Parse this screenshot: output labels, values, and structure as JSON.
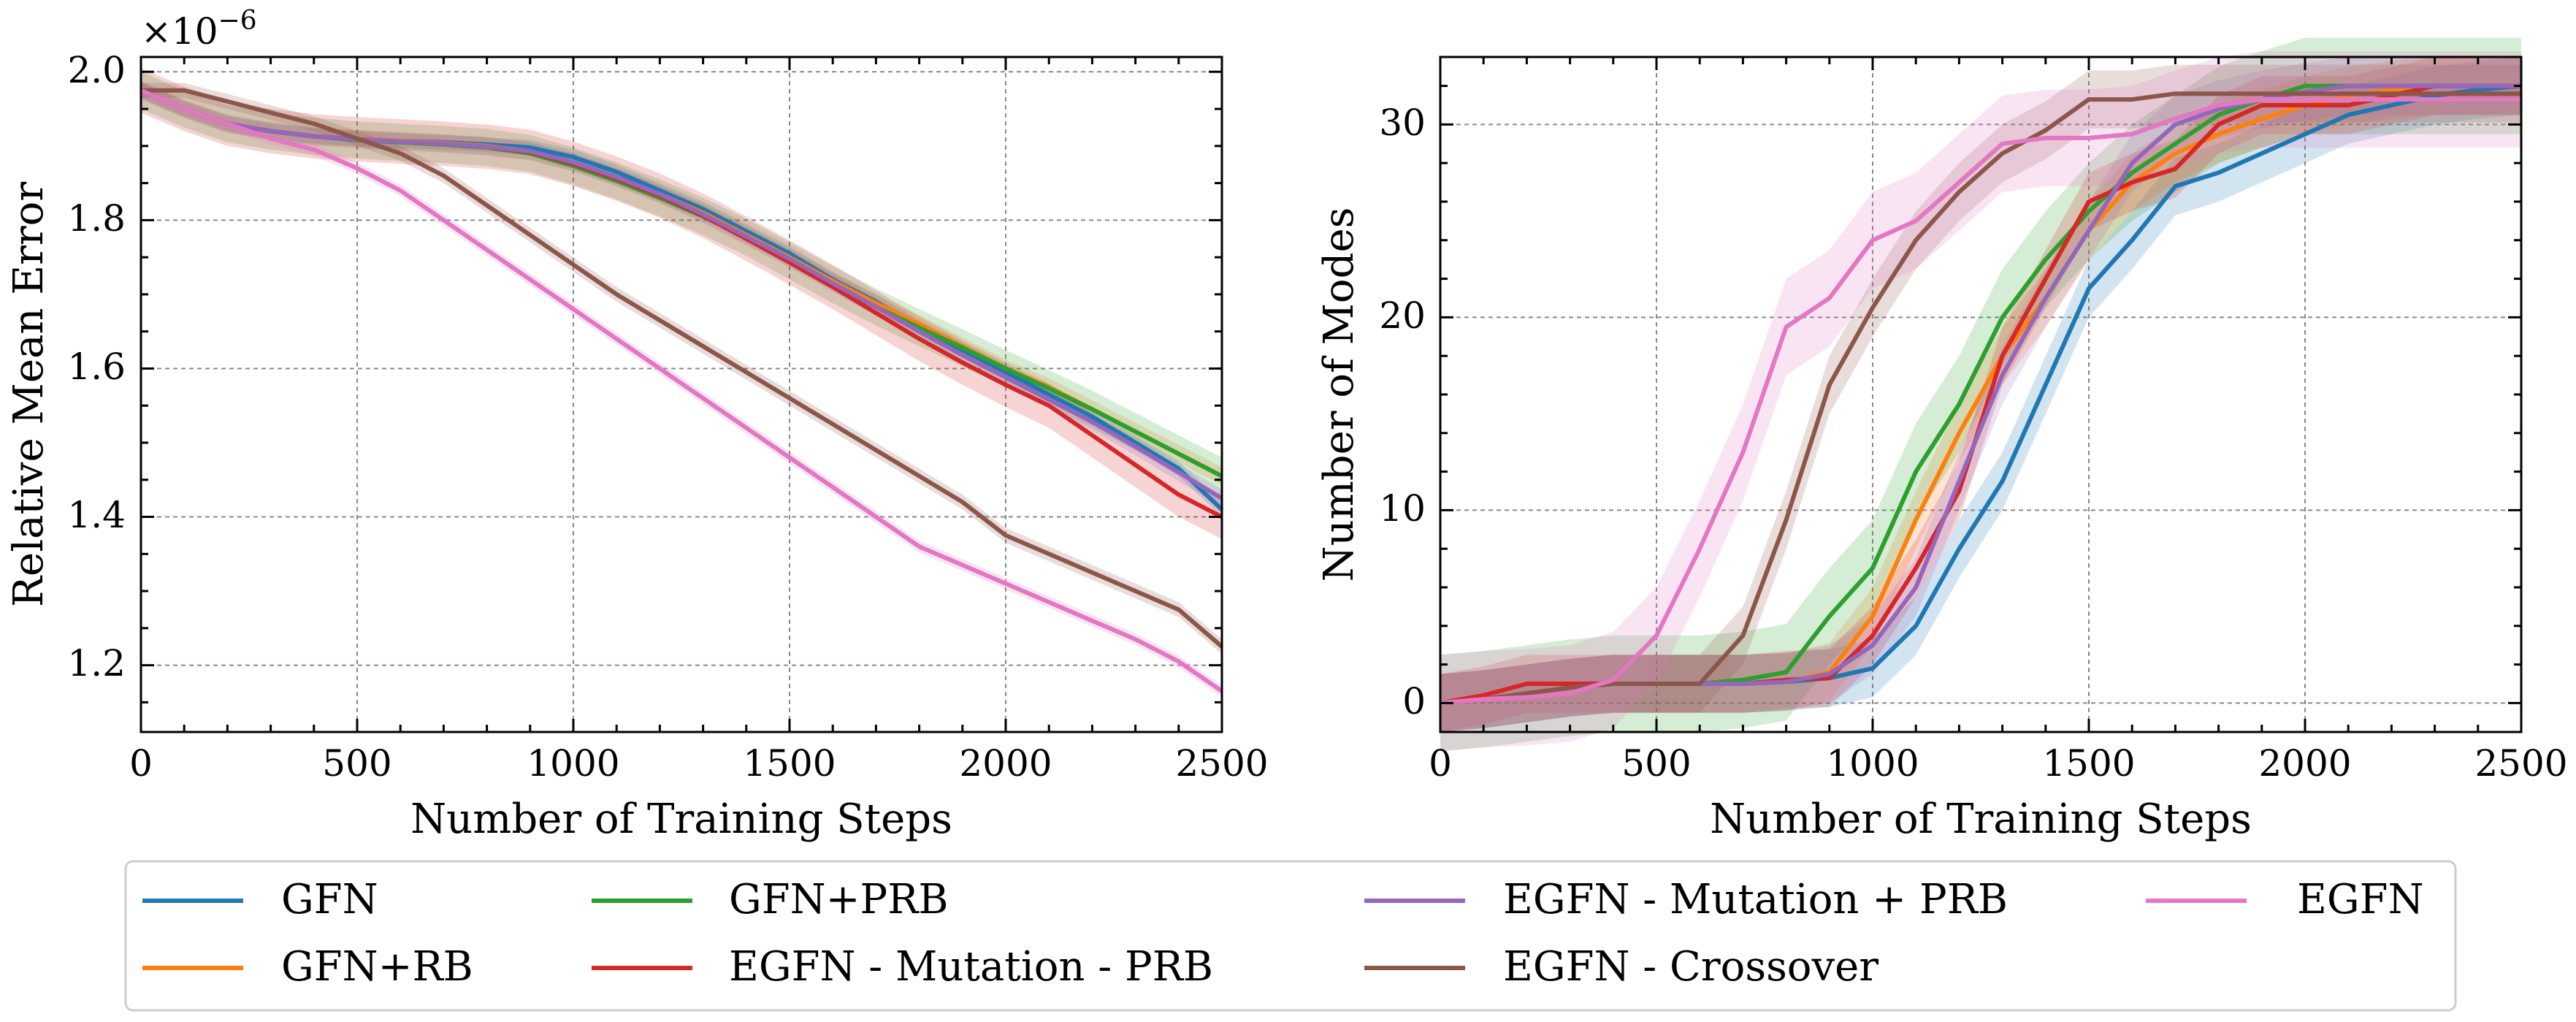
{
  "charts": [
    {
      "id": "left",
      "ylabel": "Relative Mean Error",
      "xlabel": "Number of Training Steps",
      "exponent_label": "×10",
      "exponent_power": "−6",
      "xticks": [
        "0",
        "500",
        "1000",
        "1500",
        "2000",
        "2500"
      ],
      "yticks": [
        "1.2",
        "1.4",
        "1.6",
        "1.8",
        "2.0"
      ]
    },
    {
      "id": "right",
      "ylabel": "Number of Modes",
      "xlabel": "Number of Training Steps",
      "xticks": [
        "0",
        "500",
        "1000",
        "1500",
        "2000",
        "2500"
      ],
      "yticks": [
        "0",
        "10",
        "20",
        "30"
      ]
    }
  ],
  "legend": [
    {
      "label": "GFN",
      "color": "#1f77b4"
    },
    {
      "label": "GFN+RB",
      "color": "#ff7f0e"
    },
    {
      "label": "GFN+PRB",
      "color": "#2ca02c"
    },
    {
      "label": "EGFN - Mutation - PRB",
      "color": "#d62728"
    },
    {
      "label": "EGFN - Mutation + PRB",
      "color": "#9467bd"
    },
    {
      "label": "EGFN - Crossover",
      "color": "#8c564b"
    },
    {
      "label": "EGFN",
      "color": "#e377c2"
    }
  ],
  "chart_data": [
    {
      "type": "line",
      "xlabel": "Number of Training Steps",
      "ylabel": "Relative Mean Error",
      "y_scale_note": "×10^-6",
      "xlim": [
        0,
        2500
      ],
      "ylim": [
        1.11,
        2.02
      ],
      "grid": true,
      "x": [
        0,
        100,
        200,
        300,
        400,
        500,
        600,
        700,
        800,
        900,
        1000,
        1100,
        1200,
        1300,
        1400,
        1500,
        1600,
        1700,
        1800,
        1900,
        2000,
        2100,
        2200,
        2300,
        2400,
        2500
      ],
      "series": [
        {
          "name": "GFN",
          "color": "#1f77b4",
          "band": 0.01,
          "values": [
            1.975,
            1.95,
            1.93,
            1.92,
            1.913,
            1.91,
            1.907,
            1.905,
            1.902,
            1.898,
            1.885,
            1.865,
            1.84,
            1.815,
            1.785,
            1.755,
            1.72,
            1.69,
            1.655,
            1.625,
            1.595,
            1.565,
            1.535,
            1.5,
            1.465,
            1.41
          ]
        },
        {
          "name": "GFN+RB",
          "color": "#ff7f0e",
          "band": 0.012,
          "values": [
            1.975,
            1.95,
            1.93,
            1.92,
            1.913,
            1.91,
            1.907,
            1.904,
            1.9,
            1.893,
            1.878,
            1.858,
            1.835,
            1.81,
            1.78,
            1.75,
            1.718,
            1.688,
            1.66,
            1.63,
            1.6,
            1.575,
            1.545,
            1.515,
            1.485,
            1.455
          ]
        },
        {
          "name": "GFN+PRB",
          "color": "#2ca02c",
          "band": 0.025,
          "values": [
            1.975,
            1.95,
            1.93,
            1.92,
            1.913,
            1.908,
            1.905,
            1.902,
            1.898,
            1.89,
            1.873,
            1.853,
            1.83,
            1.805,
            1.777,
            1.745,
            1.713,
            1.683,
            1.655,
            1.628,
            1.6,
            1.573,
            1.545,
            1.515,
            1.485,
            1.455
          ]
        },
        {
          "name": "EGFN - Mutation - PRB",
          "color": "#d62728",
          "band": 0.03,
          "values": [
            1.975,
            1.95,
            1.93,
            1.92,
            1.913,
            1.909,
            1.906,
            1.903,
            1.899,
            1.892,
            1.876,
            1.856,
            1.833,
            1.806,
            1.775,
            1.743,
            1.71,
            1.675,
            1.64,
            1.608,
            1.578,
            1.55,
            1.51,
            1.47,
            1.43,
            1.4
          ]
        },
        {
          "name": "EGFN - Mutation + PRB",
          "color": "#9467bd",
          "band": 0.012,
          "values": [
            1.975,
            1.95,
            1.93,
            1.92,
            1.913,
            1.909,
            1.906,
            1.903,
            1.899,
            1.893,
            1.878,
            1.858,
            1.835,
            1.808,
            1.778,
            1.748,
            1.715,
            1.683,
            1.65,
            1.618,
            1.588,
            1.558,
            1.528,
            1.495,
            1.46,
            1.425
          ]
        },
        {
          "name": "EGFN - Crossover",
          "color": "#8c564b",
          "band": 0.01,
          "values": [
            1.975,
            1.975,
            1.96,
            1.945,
            1.93,
            1.91,
            1.89,
            1.86,
            1.82,
            1.78,
            1.74,
            1.7,
            1.665,
            1.63,
            1.595,
            1.56,
            1.525,
            1.49,
            1.455,
            1.42,
            1.375,
            1.35,
            1.325,
            1.3,
            1.275,
            1.225
          ]
        },
        {
          "name": "EGFN",
          "color": "#e377c2",
          "band": 0.008,
          "values": [
            1.975,
            1.95,
            1.93,
            1.91,
            1.895,
            1.87,
            1.84,
            1.8,
            1.76,
            1.72,
            1.68,
            1.64,
            1.6,
            1.56,
            1.52,
            1.48,
            1.44,
            1.4,
            1.36,
            1.335,
            1.31,
            1.285,
            1.26,
            1.235,
            1.205,
            1.165
          ]
        }
      ]
    },
    {
      "type": "line",
      "xlabel": "Number of Training Steps",
      "ylabel": "Number of Modes",
      "xlim": [
        0,
        2500
      ],
      "ylim": [
        -1.5,
        33.5
      ],
      "grid": true,
      "x": [
        0,
        100,
        200,
        300,
        400,
        500,
        600,
        700,
        800,
        900,
        1000,
        1100,
        1200,
        1300,
        1400,
        1500,
        1600,
        1700,
        1800,
        1900,
        2000,
        2100,
        2200,
        2300,
        2400,
        2500
      ],
      "series": [
        {
          "name": "GFN",
          "color": "#1f77b4",
          "band": 1.5,
          "values": [
            0,
            0.2,
            0.5,
            0.8,
            1,
            1,
            1,
            1,
            1.1,
            1.3,
            1.8,
            4,
            8,
            11.5,
            16.5,
            21.5,
            24,
            26.8,
            27.5,
            28.5,
            29.5,
            30.5,
            31,
            31.5,
            31.8,
            32
          ]
        },
        {
          "name": "GFN+RB",
          "color": "#ff7f0e",
          "band": 1.5,
          "values": [
            0,
            0.2,
            0.5,
            0.8,
            1,
            1,
            1,
            1,
            1.1,
            1.6,
            4.5,
            9.5,
            14,
            18,
            21,
            24.5,
            27,
            28.5,
            29.5,
            30.3,
            31,
            31.5,
            31.8,
            32,
            32,
            32
          ]
        },
        {
          "name": "GFN+PRB",
          "color": "#2ca02c",
          "band": 2.5,
          "values": [
            0,
            0.2,
            0.5,
            0.8,
            1,
            1,
            1,
            1.2,
            1.6,
            4.5,
            7,
            12,
            15.5,
            20,
            23,
            25.5,
            27.5,
            29,
            30.5,
            31.3,
            32,
            32,
            32,
            32,
            32,
            32
          ]
        },
        {
          "name": "EGFN - Mutation - PRB",
          "color": "#d62728",
          "band": 1.5,
          "values": [
            0,
            0.4,
            1,
            1,
            1,
            1,
            1,
            1,
            1.2,
            1.3,
            3.5,
            7,
            11,
            18,
            22,
            26,
            27,
            27.7,
            30,
            31,
            31,
            31,
            31.5,
            32,
            32,
            32
          ]
        },
        {
          "name": "EGFN - Mutation + PRB",
          "color": "#9467bd",
          "band": 1.5,
          "values": [
            0,
            0.2,
            0.5,
            0.8,
            1,
            1,
            1,
            1,
            1.1,
            1.5,
            3,
            6,
            11.5,
            17,
            21,
            24.5,
            28,
            30,
            30.8,
            31.3,
            31.7,
            32,
            32,
            32,
            32,
            32
          ]
        },
        {
          "name": "EGFN - Crossover",
          "color": "#8c564b",
          "band": 1.5,
          "values": [
            0,
            0.2,
            0.5,
            0.8,
            1,
            1,
            1,
            3.5,
            9.5,
            16.5,
            20.5,
            24,
            26.5,
            28.5,
            29.7,
            31.3,
            31.3,
            31.6,
            31.6,
            31.6,
            31.6,
            31.6,
            31.6,
            31.6,
            31.6,
            31.6
          ]
        },
        {
          "name": "EGFN",
          "color": "#e377c2",
          "band": 2.5,
          "values": [
            0,
            0.2,
            0.3,
            0.5,
            1.2,
            3.5,
            8,
            13,
            19.5,
            21,
            24,
            25,
            27,
            29,
            29.3,
            29.3,
            29.5,
            30.3,
            31,
            31.3,
            31.3,
            31.3,
            31.3,
            31.3,
            31.3,
            31.3
          ]
        }
      ]
    }
  ]
}
